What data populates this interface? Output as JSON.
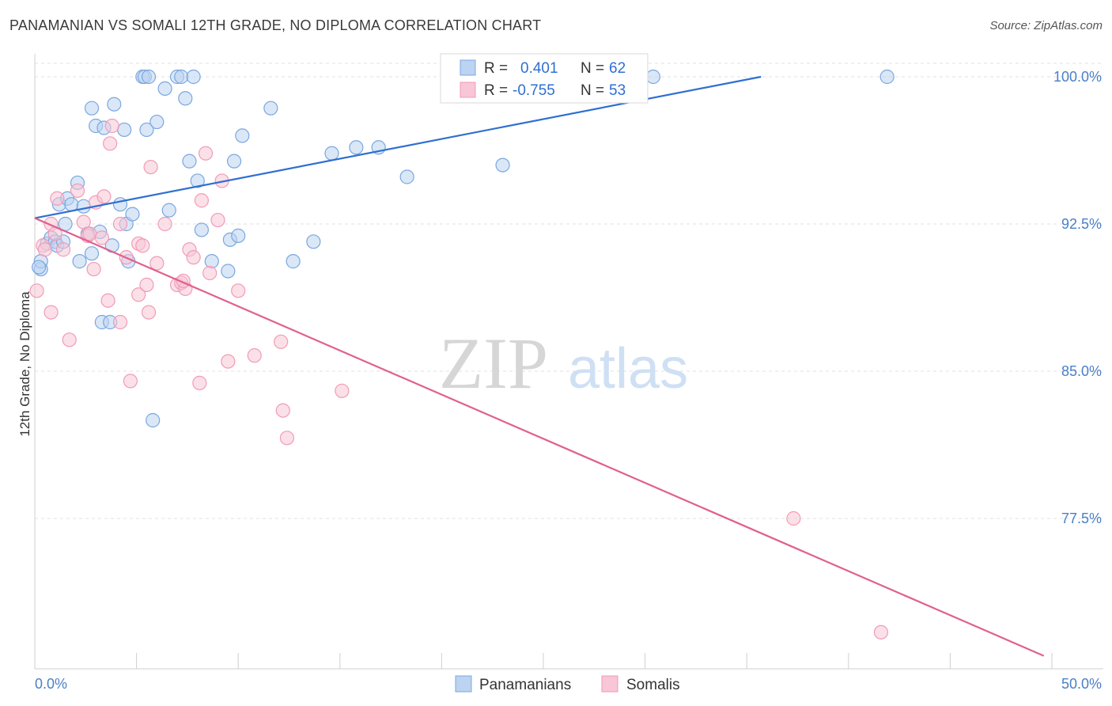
{
  "header": {
    "title": "PANAMANIAN VS SOMALI 12TH GRADE, NO DIPLOMA CORRELATION CHART",
    "source": "Source: ZipAtlas.com"
  },
  "watermark": {
    "zip": "ZIP",
    "atlas": "atlas"
  },
  "chart_data": {
    "type": "scatter",
    "ylabel": "12th Grade, No Diploma",
    "xlim": [
      0,
      50
    ],
    "ylim": [
      70.5,
      101
    ],
    "x_tick_labels": [
      "0.0%",
      "50.0%"
    ],
    "y_ticks": [
      100.0,
      92.5,
      85.0,
      77.5
    ],
    "y_tick_labels": [
      "100.0%",
      "92.5%",
      "85.0%",
      "77.5%"
    ],
    "grid": true,
    "legend_position": "top-center",
    "legend": [
      {
        "r_label": "R =",
        "r_value": "0.401",
        "n_label": "N =",
        "n_value": "62"
      },
      {
        "r_label": "R =",
        "r_value": "-0.755",
        "n_label": "N =",
        "n_value": "53"
      }
    ],
    "series": [
      {
        "name": "Panamanians",
        "color": "#7ba7e0",
        "line_color": "#2f6fd1",
        "trend": {
          "x": [
            0,
            35.7
          ],
          "y": [
            92.8,
            100.0
          ]
        },
        "points": [
          [
            0.3,
            90.2
          ],
          [
            0.3,
            90.6
          ],
          [
            0.6,
            91.5
          ],
          [
            0.8,
            91.8
          ],
          [
            1.0,
            91.6
          ],
          [
            1.1,
            91.4
          ],
          [
            1.2,
            93.5
          ],
          [
            1.4,
            91.6
          ],
          [
            1.5,
            92.5
          ],
          [
            1.6,
            93.8
          ],
          [
            1.8,
            93.5
          ],
          [
            2.1,
            94.6
          ],
          [
            2.2,
            90.6
          ],
          [
            2.4,
            93.4
          ],
          [
            2.6,
            92.0
          ],
          [
            2.8,
            91.0
          ],
          [
            2.8,
            98.4
          ],
          [
            3.0,
            97.5
          ],
          [
            3.2,
            92.1
          ],
          [
            3.3,
            87.5
          ],
          [
            3.4,
            97.4
          ],
          [
            3.7,
            87.5
          ],
          [
            3.8,
            91.4
          ],
          [
            3.9,
            98.6
          ],
          [
            4.2,
            93.5
          ],
          [
            4.4,
            97.3
          ],
          [
            4.5,
            92.5
          ],
          [
            4.6,
            90.6
          ],
          [
            4.8,
            93.0
          ],
          [
            5.3,
            100.0
          ],
          [
            5.4,
            100.0
          ],
          [
            5.5,
            97.3
          ],
          [
            5.6,
            100.0
          ],
          [
            5.8,
            82.5
          ],
          [
            6.0,
            97.7
          ],
          [
            6.4,
            99.4
          ],
          [
            6.6,
            93.2
          ],
          [
            7.0,
            100.0
          ],
          [
            7.2,
            100.0
          ],
          [
            7.4,
            98.9
          ],
          [
            7.6,
            95.7
          ],
          [
            7.8,
            100.0
          ],
          [
            8.0,
            94.7
          ],
          [
            8.2,
            92.2
          ],
          [
            8.7,
            90.6
          ],
          [
            9.5,
            90.1
          ],
          [
            9.6,
            91.7
          ],
          [
            9.8,
            95.7
          ],
          [
            10.0,
            91.9
          ],
          [
            10.2,
            97.0
          ],
          [
            11.6,
            98.4
          ],
          [
            12.7,
            90.6
          ],
          [
            13.7,
            91.6
          ],
          [
            14.6,
            96.1
          ],
          [
            15.8,
            96.4
          ],
          [
            16.9,
            96.4
          ],
          [
            18.3,
            94.9
          ],
          [
            23.0,
            95.5
          ],
          [
            23.2,
            100.0
          ],
          [
            30.4,
            100.0
          ],
          [
            41.9,
            100.0
          ],
          [
            0.2,
            90.3
          ]
        ]
      },
      {
        "name": "Somalis",
        "color": "#f19bb8",
        "line_color": "#e0608e",
        "trend": {
          "x": [
            0,
            49.6
          ],
          "y": [
            92.8,
            70.5
          ]
        },
        "points": [
          [
            0.1,
            89.1
          ],
          [
            0.4,
            91.4
          ],
          [
            0.5,
            91.2
          ],
          [
            0.8,
            88.0
          ],
          [
            0.8,
            92.5
          ],
          [
            1.0,
            92.0
          ],
          [
            1.1,
            93.8
          ],
          [
            1.4,
            91.2
          ],
          [
            1.7,
            86.6
          ],
          [
            2.1,
            94.2
          ],
          [
            2.4,
            92.6
          ],
          [
            2.6,
            91.9
          ],
          [
            2.7,
            92.0
          ],
          [
            2.9,
            90.2
          ],
          [
            3.0,
            93.6
          ],
          [
            3.3,
            91.8
          ],
          [
            3.4,
            93.9
          ],
          [
            3.6,
            88.6
          ],
          [
            3.7,
            96.6
          ],
          [
            3.8,
            97.5
          ],
          [
            4.2,
            92.5
          ],
          [
            4.2,
            87.5
          ],
          [
            4.5,
            90.8
          ],
          [
            4.7,
            84.5
          ],
          [
            5.1,
            91.5
          ],
          [
            5.1,
            88.9
          ],
          [
            5.3,
            91.4
          ],
          [
            5.5,
            89.4
          ],
          [
            5.6,
            88.0
          ],
          [
            5.7,
            95.4
          ],
          [
            6.0,
            90.5
          ],
          [
            6.4,
            92.5
          ],
          [
            7.0,
            89.4
          ],
          [
            7.2,
            89.5
          ],
          [
            7.4,
            89.2
          ],
          [
            7.6,
            91.2
          ],
          [
            7.8,
            90.8
          ],
          [
            8.1,
            84.4
          ],
          [
            8.2,
            93.7
          ],
          [
            8.4,
            96.1
          ],
          [
            8.6,
            90.0
          ],
          [
            9.0,
            92.7
          ],
          [
            9.2,
            94.7
          ],
          [
            9.5,
            85.5
          ],
          [
            10.0,
            89.1
          ],
          [
            10.8,
            85.8
          ],
          [
            12.1,
            86.5
          ],
          [
            12.2,
            83.0
          ],
          [
            12.4,
            81.6
          ],
          [
            15.1,
            84.0
          ],
          [
            37.3,
            77.5
          ],
          [
            41.6,
            71.7
          ],
          [
            7.3,
            89.6
          ]
        ]
      }
    ]
  }
}
